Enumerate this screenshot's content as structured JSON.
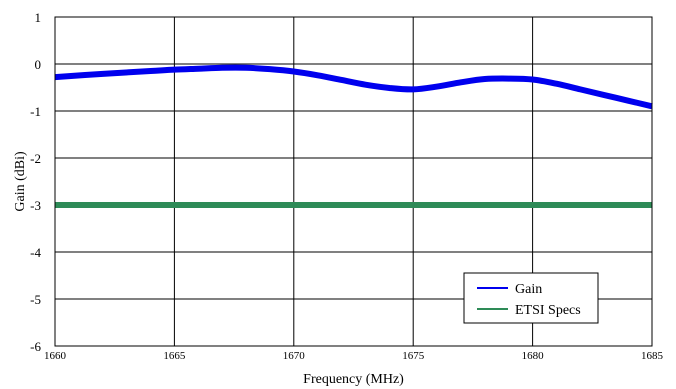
{
  "chart_data": {
    "type": "line",
    "title": "",
    "xlabel": "Frequency (MHz)",
    "ylabel": "Gain (dBi)",
    "xlim": [
      1660,
      1685
    ],
    "ylim": [
      -6,
      1
    ],
    "x_ticks": [
      "1660",
      "1665",
      "1670",
      "1675",
      "1680",
      "1685"
    ],
    "y_ticks": [
      "1",
      "0",
      "-1",
      "-2",
      "-3",
      "-4",
      "-5",
      "-6"
    ],
    "grid": true,
    "legend_position": "bottom-right",
    "series": [
      {
        "name": "Gain",
        "color": "#0000ee",
        "x": [
          1660,
          1662,
          1664,
          1665,
          1666,
          1667,
          1668,
          1669,
          1670,
          1671,
          1672,
          1673,
          1674,
          1675,
          1676,
          1677,
          1678,
          1679,
          1680,
          1681,
          1682,
          1683,
          1684,
          1685
        ],
        "y": [
          -0.28,
          -0.21,
          -0.15,
          -0.12,
          -0.1,
          -0.08,
          -0.08,
          -0.11,
          -0.16,
          -0.24,
          -0.34,
          -0.44,
          -0.51,
          -0.54,
          -0.48,
          -0.39,
          -0.32,
          -0.31,
          -0.33,
          -0.42,
          -0.54,
          -0.66,
          -0.78,
          -0.9
        ]
      },
      {
        "name": "ETSI Specs",
        "color": "#2e8b57",
        "x": [
          1660,
          1685
        ],
        "y": [
          -3,
          -3
        ]
      }
    ]
  }
}
